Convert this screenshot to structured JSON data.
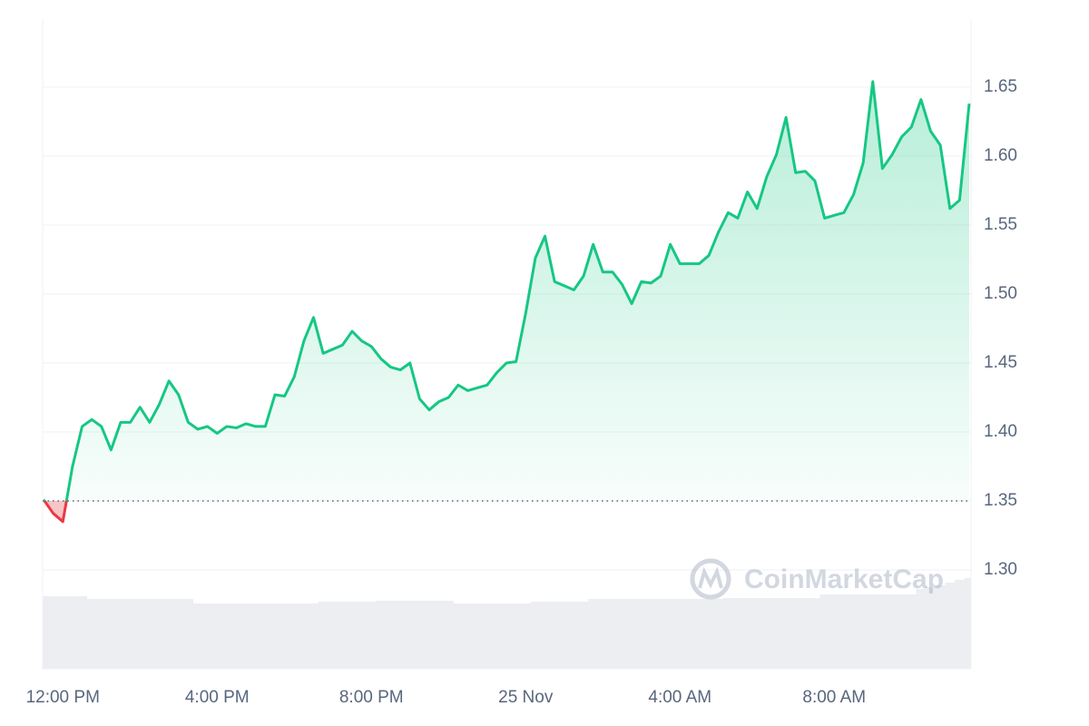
{
  "chart_data": {
    "type": "line",
    "categories": [
      null,
      null,
      "12:00 PM",
      null,
      null,
      null,
      null,
      null,
      null,
      null,
      null,
      null,
      null,
      null,
      null,
      null,
      null,
      null,
      "4:00 PM",
      null,
      null,
      null,
      null,
      null,
      null,
      null,
      null,
      null,
      null,
      null,
      null,
      null,
      null,
      null,
      "8:00 PM",
      null,
      null,
      null,
      null,
      null,
      null,
      null,
      null,
      null,
      null,
      null,
      null,
      null,
      null,
      null,
      "25 Nov",
      null,
      null,
      null,
      null,
      null,
      null,
      null,
      null,
      null,
      null,
      null,
      null,
      null,
      null,
      null,
      "4:00 AM",
      null,
      null,
      null,
      null,
      null,
      null,
      null,
      null,
      null,
      null,
      null,
      null,
      null,
      null,
      null,
      "8:00 AM",
      null,
      null,
      null,
      null,
      null,
      null,
      null,
      null,
      null,
      null,
      null,
      null,
      null,
      null
    ],
    "values": [
      1.351,
      1.341,
      1.335,
      1.375,
      1.404,
      1.409,
      1.404,
      1.387,
      1.407,
      1.407,
      1.418,
      1.407,
      1.42,
      1.437,
      1.427,
      1.407,
      1.402,
      1.404,
      1.399,
      1.404,
      1.403,
      1.406,
      1.404,
      1.404,
      1.427,
      1.426,
      1.44,
      1.466,
      1.483,
      1.457,
      1.46,
      1.463,
      1.473,
      1.466,
      1.462,
      1.453,
      1.447,
      1.445,
      1.45,
      1.424,
      1.416,
      1.422,
      1.425,
      1.434,
      1.43,
      1.432,
      1.434,
      1.443,
      1.45,
      1.451,
      1.486,
      1.526,
      1.542,
      1.509,
      1.506,
      1.503,
      1.513,
      1.536,
      1.516,
      1.516,
      1.507,
      1.493,
      1.509,
      1.508,
      1.513,
      1.536,
      1.522,
      1.522,
      1.522,
      1.528,
      1.545,
      1.559,
      1.555,
      1.574,
      1.562,
      1.585,
      1.601,
      1.628,
      1.588,
      1.589,
      1.582,
      1.555,
      1.557,
      1.559,
      1.572,
      1.595,
      1.654,
      1.591,
      1.601,
      1.614,
      1.621,
      1.641,
      1.618,
      1.608,
      1.562,
      1.568,
      1.638
    ],
    "volume": [
      80,
      80,
      80,
      80,
      80,
      77,
      77,
      77,
      77,
      77,
      77,
      77,
      77,
      77,
      77,
      77,
      72,
      72,
      72,
      72,
      72,
      72,
      72,
      72,
      72,
      72,
      72,
      72,
      72,
      74,
      74,
      74,
      74,
      74,
      74,
      75,
      75,
      75,
      75,
      75,
      75,
      75,
      75,
      72,
      72,
      72,
      72,
      72,
      72,
      72,
      72,
      74,
      74,
      74,
      74,
      74,
      74,
      77,
      77,
      77,
      77,
      77,
      77,
      77,
      77,
      77,
      77,
      77,
      77,
      77,
      77,
      78,
      78,
      78,
      78,
      78,
      78,
      78,
      78,
      78,
      78,
      82,
      82,
      82,
      82,
      82,
      82,
      82,
      82,
      82,
      82,
      88,
      90,
      92,
      95,
      98,
      100
    ],
    "color": "#16c784",
    "down_color": "#ea3943",
    "volume_color": "#eceef2",
    "baseline": 1.35,
    "ylim": [
      1.2283,
      1.7
    ],
    "yticks": [
      {
        "value": 1.3,
        "label": "1.30"
      },
      1.35,
      {
        "value": 1.4,
        "label": "1.40"
      },
      1.45,
      {
        "value": 1.5,
        "label": "1.50"
      },
      1.55,
      {
        "value": 1.6,
        "label": "1.60"
      },
      1.65
    ],
    "grid": true,
    "watermark": "CoinMarketCap"
  }
}
